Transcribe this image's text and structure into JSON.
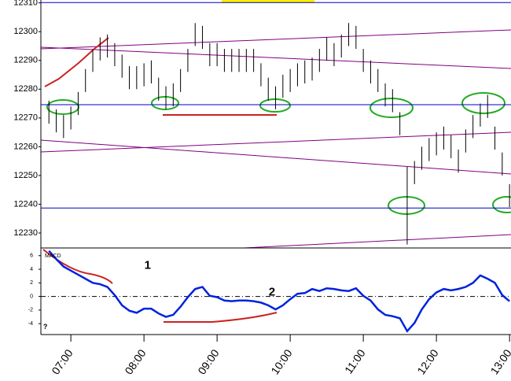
{
  "chart_data": [
    {
      "type": "hilo",
      "x": [
        6.7,
        6.8,
        6.9,
        7.0,
        7.1,
        7.2,
        7.3,
        7.4,
        7.5,
        7.6,
        7.7,
        7.8,
        7.9,
        8.0,
        8.1,
        8.2,
        8.3,
        8.4,
        8.5,
        8.6,
        8.7,
        8.8,
        8.9,
        9.0,
        9.1,
        9.2,
        9.3,
        9.4,
        9.5,
        9.6,
        9.7,
        9.8,
        9.9,
        10.0,
        10.1,
        10.2,
        10.3,
        10.4,
        10.5,
        10.6,
        10.7,
        10.8,
        10.9,
        11.0,
        11.1,
        11.2,
        11.3,
        11.4,
        11.5,
        11.6,
        11.7,
        11.8,
        11.9,
        12.0,
        12.1,
        12.2,
        12.3,
        12.4,
        12.5,
        12.6,
        12.7,
        12.8,
        12.9,
        13.0
      ],
      "series": [
        {
          "color": "#000000",
          "high": [
            12276,
            12273,
            12271,
            12274,
            12279,
            12287,
            12294,
            12298,
            12299,
            12296,
            12292,
            12288,
            12288,
            12289,
            12290,
            12284,
            12281,
            12282,
            12287,
            12294,
            12303,
            12302,
            12296,
            12296,
            12294,
            12294,
            12294,
            12294,
            12294,
            12289,
            12284,
            12281,
            12285,
            12287,
            12289,
            12290,
            12291,
            12294,
            12298,
            12296,
            12299,
            12303,
            12302,
            12294,
            12290,
            12287,
            12282,
            12280,
            12272,
            12253,
            12255,
            12260,
            12263,
            12265,
            12267,
            12264,
            12259,
            12266,
            12271,
            12275,
            12278,
            12267,
            12258,
            12247
          ],
          "low": [
            12268,
            12265,
            12263,
            12266,
            12271,
            12279,
            12286,
            12290,
            12291,
            12288,
            12284,
            12280,
            12280,
            12281,
            12282,
            12276,
            12273,
            12274,
            12279,
            12286,
            12295,
            12294,
            12288,
            12288,
            12286,
            12286,
            12286,
            12286,
            12286,
            12281,
            12276,
            12273,
            12277,
            12279,
            12281,
            12282,
            12283,
            12286,
            12290,
            12288,
            12291,
            12295,
            12294,
            12286,
            12282,
            12279,
            12274,
            12272,
            12264,
            12226,
            12247,
            12252,
            12255,
            12257,
            12259,
            12256,
            12251,
            12258,
            12263,
            12267,
            12270,
            12259,
            12250,
            12239
          ]
        }
      ],
      "xlim": [
        6.59,
        13.02
      ],
      "ylim": [
        12224.8,
        12311
      ],
      "yticks": [
        12230,
        12240,
        12250,
        12260,
        12270,
        12280,
        12290,
        12300,
        12310
      ],
      "reference_lines": [
        12310.1,
        12274.6,
        12238.7
      ],
      "reference_color": "#0000cc"
    },
    {
      "type": "line",
      "x": [
        6.7,
        6.8,
        6.9,
        7.0,
        7.1,
        7.2,
        7.3,
        7.4,
        7.5,
        7.6,
        7.7,
        7.8,
        7.9,
        8.0,
        8.1,
        8.2,
        8.3,
        8.4,
        8.5,
        8.6,
        8.7,
        8.8,
        8.9,
        9.0,
        9.1,
        9.2,
        9.3,
        9.4,
        9.5,
        9.6,
        9.7,
        9.8,
        9.9,
        10.0,
        10.1,
        10.2,
        10.3,
        10.4,
        10.5,
        10.6,
        10.7,
        10.8,
        10.9,
        11.0,
        11.1,
        11.2,
        11.3,
        11.4,
        11.5,
        11.6,
        11.7,
        11.8,
        11.9,
        12.0,
        12.1,
        12.2,
        12.3,
        12.4,
        12.5,
        12.6,
        12.7,
        12.8,
        12.9,
        13.0
      ],
      "series": [
        {
          "name": "MACD",
          "color": "#0022dd",
          "values": [
            6.7,
            5.5,
            4.4,
            3.8,
            3.2,
            2.6,
            2.0,
            1.8,
            1.4,
            0.2,
            -1.3,
            -2.1,
            -2.4,
            -1.8,
            -1.8,
            -2.5,
            -3.0,
            -2.7,
            -1.5,
            -0.1,
            1.1,
            1.4,
            0.1,
            -0.1,
            -0.6,
            -0.7,
            -0.6,
            -0.6,
            -0.7,
            -0.9,
            -1.3,
            -1.9,
            -1.3,
            -0.4,
            0.4,
            0.5,
            1.1,
            0.8,
            1.2,
            1.1,
            0.9,
            0.8,
            1.2,
            0.1,
            -0.6,
            -1.9,
            -2.7,
            -2.9,
            -3.2,
            -5.1,
            -3.9,
            -1.9,
            -0.4,
            0.6,
            1.1,
            0.9,
            1.1,
            1.4,
            2.0,
            3.1,
            2.6,
            2.0,
            0.2,
            -0.7
          ]
        }
      ],
      "xlim": [
        6.59,
        13.02
      ],
      "ylim": [
        -5.6,
        6.9
      ],
      "yticks": [
        -4,
        -2,
        0,
        2,
        4,
        6
      ],
      "xticks": [
        {
          "value": 7,
          "label": "07:00"
        },
        {
          "value": 8,
          "label": "08:00"
        },
        {
          "value": 9,
          "label": "09:00"
        },
        {
          "value": 10,
          "label": "10:00"
        },
        {
          "value": 11,
          "label": "11:00"
        },
        {
          "value": 12,
          "label": "12:00"
        },
        {
          "value": 13,
          "label": "13:00"
        }
      ],
      "annotations": [
        {
          "text": "1",
          "x": 8.05,
          "y": 4.5
        },
        {
          "text": "2",
          "x": 9.75,
          "y": 0.6
        },
        {
          "text": "?",
          "x": 6.65,
          "y": -4.5
        }
      ],
      "annotation_color": "#cc0000"
    }
  ]
}
